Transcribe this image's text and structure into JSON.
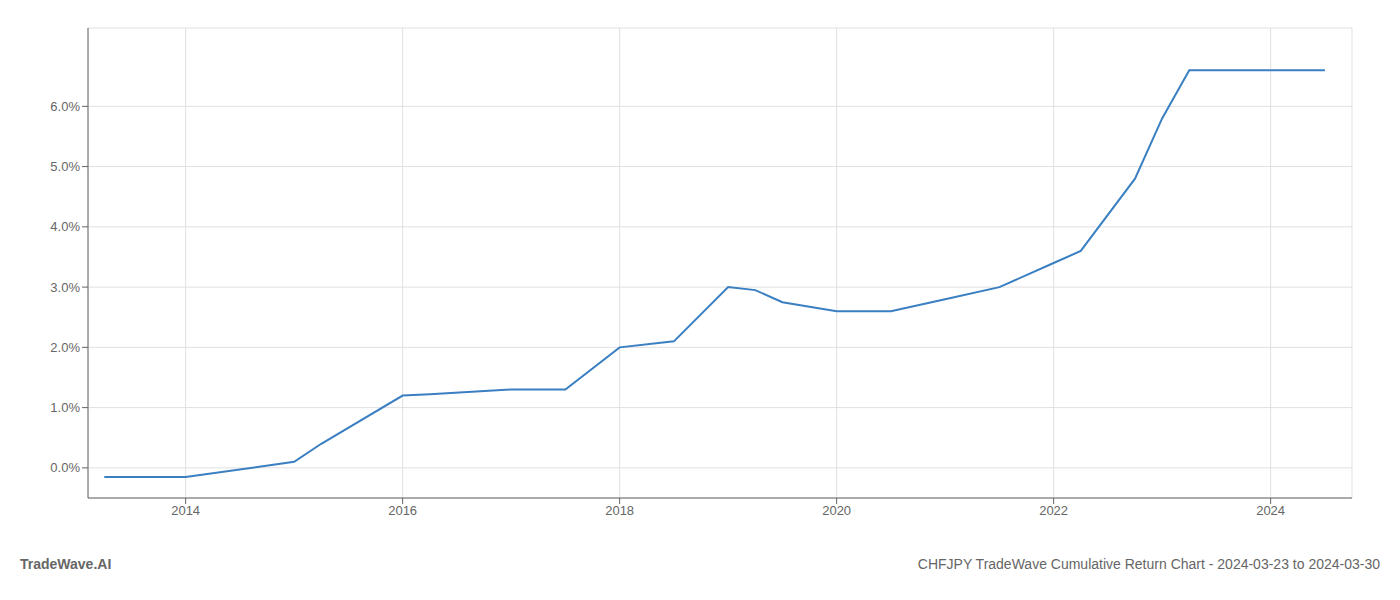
{
  "chart_data": {
    "type": "line",
    "title": "CHFJPY TradeWave Cumulative Return Chart - 2024-03-23 to 2024-03-30",
    "annotations": [
      "TradeWave.AI"
    ],
    "x": [
      2013.25,
      2014.0,
      2015.0,
      2015.25,
      2016.0,
      2016.25,
      2017.0,
      2017.5,
      2018.0,
      2018.5,
      2019.0,
      2019.25,
      2019.5,
      2020.0,
      2020.25,
      2020.5,
      2021.0,
      2021.5,
      2022.0,
      2022.25,
      2022.75,
      2023.0,
      2023.25,
      2024.0,
      2024.5
    ],
    "values": [
      -0.0015,
      -0.0015,
      0.001,
      0.004,
      0.012,
      0.0122,
      0.013,
      0.013,
      0.02,
      0.021,
      0.03,
      0.0295,
      0.0275,
      0.026,
      0.026,
      0.026,
      0.028,
      0.03,
      0.034,
      0.036,
      0.048,
      0.058,
      0.066,
      0.066,
      0.066
    ],
    "color": "#3a7fc1",
    "xlim": [
      2013.1,
      2024.75
    ],
    "ylim": [
      -0.005,
      0.073
    ],
    "xticks": [
      2014,
      2016,
      2018,
      2020,
      2022,
      2024
    ],
    "yticks": [
      {
        "value": 0.0,
        "label": "0.0%"
      },
      {
        "value": 0.01,
        "label": "1.0%"
      },
      {
        "value": 0.02,
        "label": "2.0%"
      },
      {
        "value": 0.03,
        "label": "3.0%"
      },
      {
        "value": 0.04,
        "label": "4.0%"
      },
      {
        "value": 0.05,
        "label": "5.0%"
      },
      {
        "value": 0.06,
        "label": "6.0%"
      }
    ],
    "grid": true
  }
}
